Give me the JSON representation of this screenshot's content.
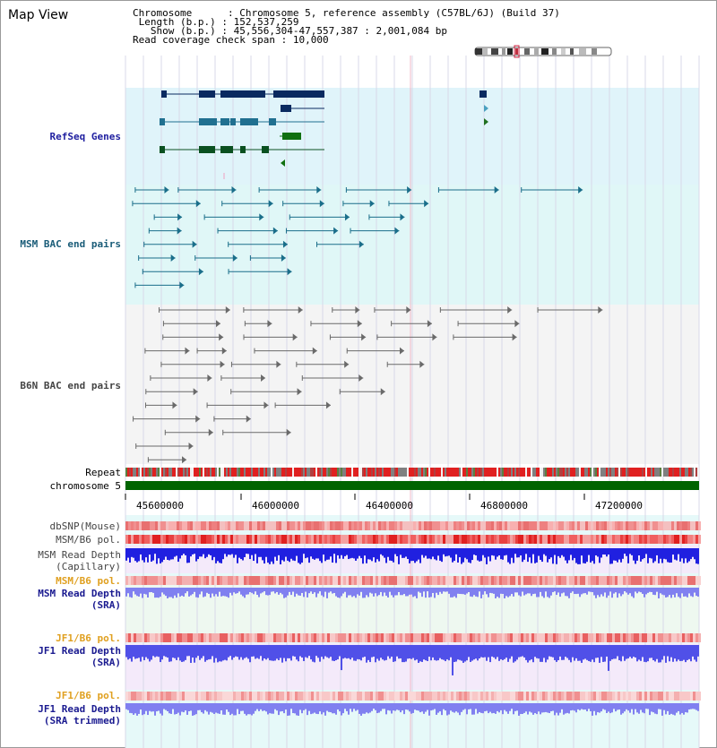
{
  "title": "Map View",
  "info": {
    "chromosome_key": "Chromosome",
    "chromosome_val": "Chromosome 5, reference assembly (C57BL/6J) (Build 37)",
    "length_key": "Length (b.p.)",
    "length_val": "152,537,259",
    "show_key": "Show (b.p.)",
    "show_val": "45,556,304-47,557,387 : 2,001,084 bp",
    "coverage_key": "Read coverage check span",
    "coverage_val": "10,000"
  },
  "tracks": {
    "refseq": "RefSeq Genes",
    "msm_bac": "MSM BAC end pairs",
    "b6n_bac": "B6N BAC end pairs",
    "repeat": "Repeat",
    "chromosome": "chromosome 5",
    "dbsnp": "dbSNP(Mouse)",
    "msm_pol": "MSM/B6 pol.",
    "msm_depth_cap_1": "MSM Read Depth",
    "msm_depth_cap_2": "(Capillary)",
    "msm_pol2": "MSM/B6 pol.",
    "msm_depth_sra_1": "MSM Read Depth",
    "msm_depth_sra_2": "(SRA)",
    "jf1_pol": "JF1/B6 pol.",
    "jf1_depth_sra_1": "JF1 Read Depth",
    "jf1_depth_sra_2": "(SRA)",
    "jf1_pol2": "JF1/B6 pol.",
    "jf1_trim_1": "JF1 Read Depth",
    "jf1_trim_2": "(SRA trimmed)"
  },
  "axis": {
    "ticks": [
      "45600000",
      "46000000",
      "46400000",
      "46800000",
      "47200000"
    ]
  },
  "colors": {
    "refseq_bg": "#e0f4fa",
    "msm_bg": "#e0f7f7",
    "b6n_bg": "#f4f4f4",
    "chromosome_bar": "#006400",
    "depth_blue": "#2020e0",
    "depth_light": "#8080f0",
    "pol_red": "#e83030"
  }
}
